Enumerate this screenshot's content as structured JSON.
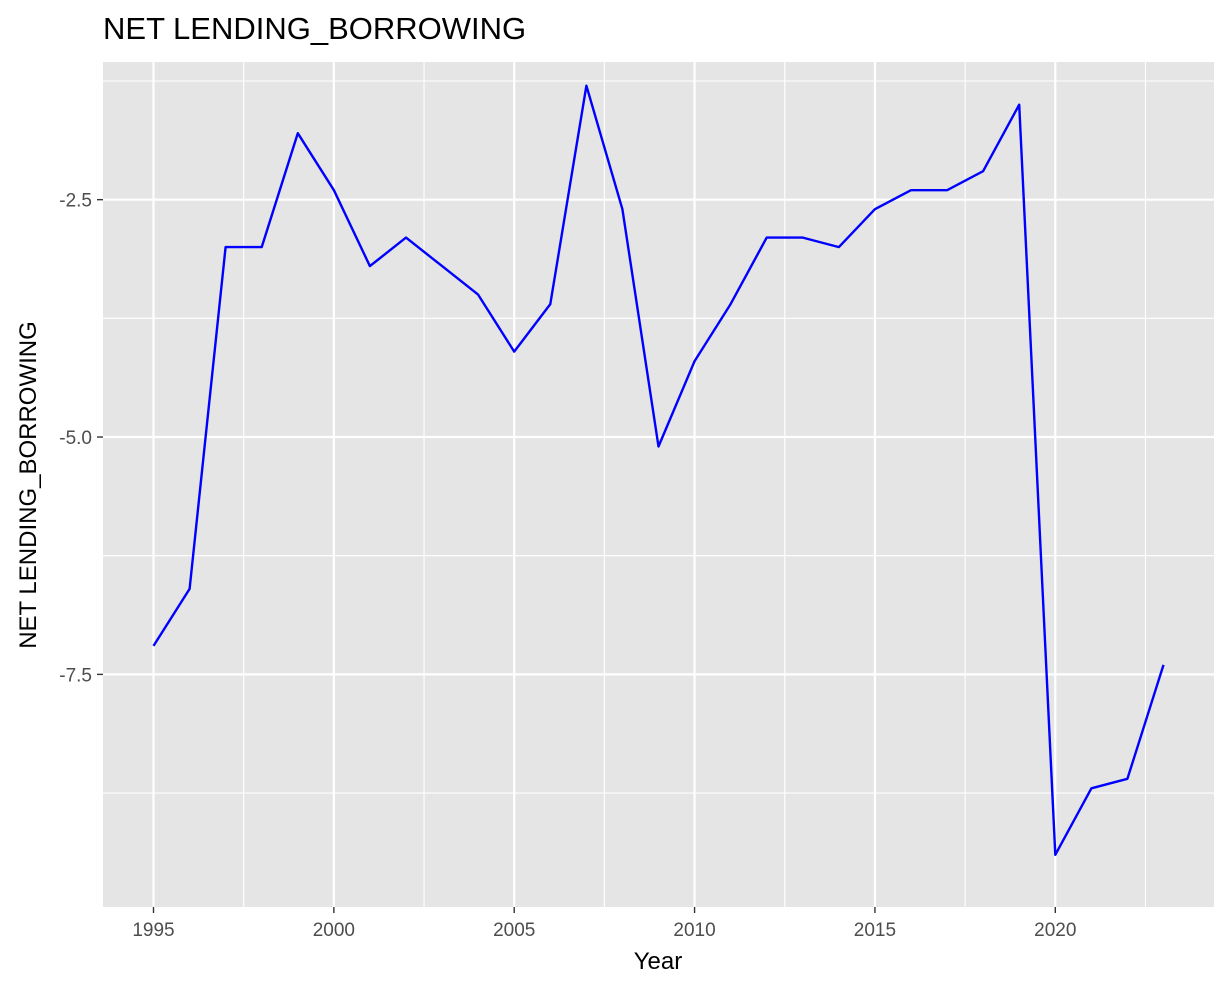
{
  "chart_data": {
    "type": "line",
    "title": "NET LENDING_BORROWING",
    "xlabel": "Year",
    "ylabel": "NET LENDING_BORROWING",
    "xlim": [
      1993.6,
      2024.4
    ],
    "ylim": [
      -9.95,
      -1.05
    ],
    "x_ticks": [
      1995,
      2000,
      2005,
      2010,
      2015,
      2020
    ],
    "x_tick_labels": [
      "1995",
      "2000",
      "2005",
      "2010",
      "2015",
      "2020"
    ],
    "y_ticks": [
      -2.5,
      -5.0,
      -7.5
    ],
    "y_tick_labels": [
      "-2.5",
      "-5.0",
      "-7.5"
    ],
    "grid": true,
    "legend": "none",
    "colors": {
      "line": "#0000ff",
      "panel": "#e5e5e5",
      "grid": "#ffffff",
      "tick": "#333333"
    },
    "series": [
      {
        "x": [
          1995,
          1996,
          1997,
          1998,
          1999,
          2000,
          2001,
          2002,
          2003,
          2004,
          2005,
          2006,
          2007,
          2008,
          2009,
          2010,
          2011,
          2012,
          2013,
          2014,
          2015,
          2016,
          2017,
          2018,
          2019,
          2020,
          2021,
          2022,
          2023
        ],
        "values": [
          -7.2,
          -6.6,
          -3.0,
          -3.0,
          -1.8,
          -2.4,
          -3.2,
          -2.9,
          -3.2,
          -3.5,
          -4.1,
          -3.6,
          -1.3,
          -2.6,
          -5.1,
          -4.2,
          -3.6,
          -2.9,
          -2.9,
          -3.0,
          -2.6,
          -2.4,
          -2.4,
          -2.2,
          -1.5,
          -9.4,
          -8.7,
          -8.6,
          -7.4
        ]
      }
    ]
  }
}
